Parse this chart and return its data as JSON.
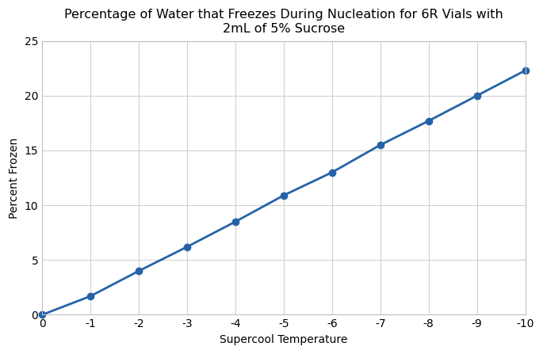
{
  "title": "Percentage of Water that Freezes During Nucleation for 6R Vials with\n2mL of 5% Sucrose",
  "xlabel": "Supercool Temperature",
  "ylabel": "Percent Frozen",
  "x": [
    0,
    -1,
    -2,
    -3,
    -4,
    -5,
    -6,
    -7,
    -8,
    -9,
    -10
  ],
  "y": [
    0,
    1.7,
    4.0,
    6.2,
    8.5,
    10.9,
    13.0,
    15.5,
    17.7,
    20.0,
    22.3
  ],
  "xlim_left": 0,
  "xlim_right": -10,
  "ylim": [
    0,
    25
  ],
  "xticks": [
    0,
    -1,
    -2,
    -3,
    -4,
    -5,
    -6,
    -7,
    -8,
    -9,
    -10
  ],
  "yticks": [
    0,
    5,
    10,
    15,
    20,
    25
  ],
  "line_color": "#2563a8",
  "marker": "o",
  "marker_size": 6,
  "line_width": 2.0,
  "figure_bg": "#ffffff",
  "axes_bg": "#ffffff",
  "grid_color": "#d0d0d0",
  "spine_color": "#c0c0c0",
  "title_fontsize": 11.5,
  "label_fontsize": 10,
  "tick_fontsize": 10
}
